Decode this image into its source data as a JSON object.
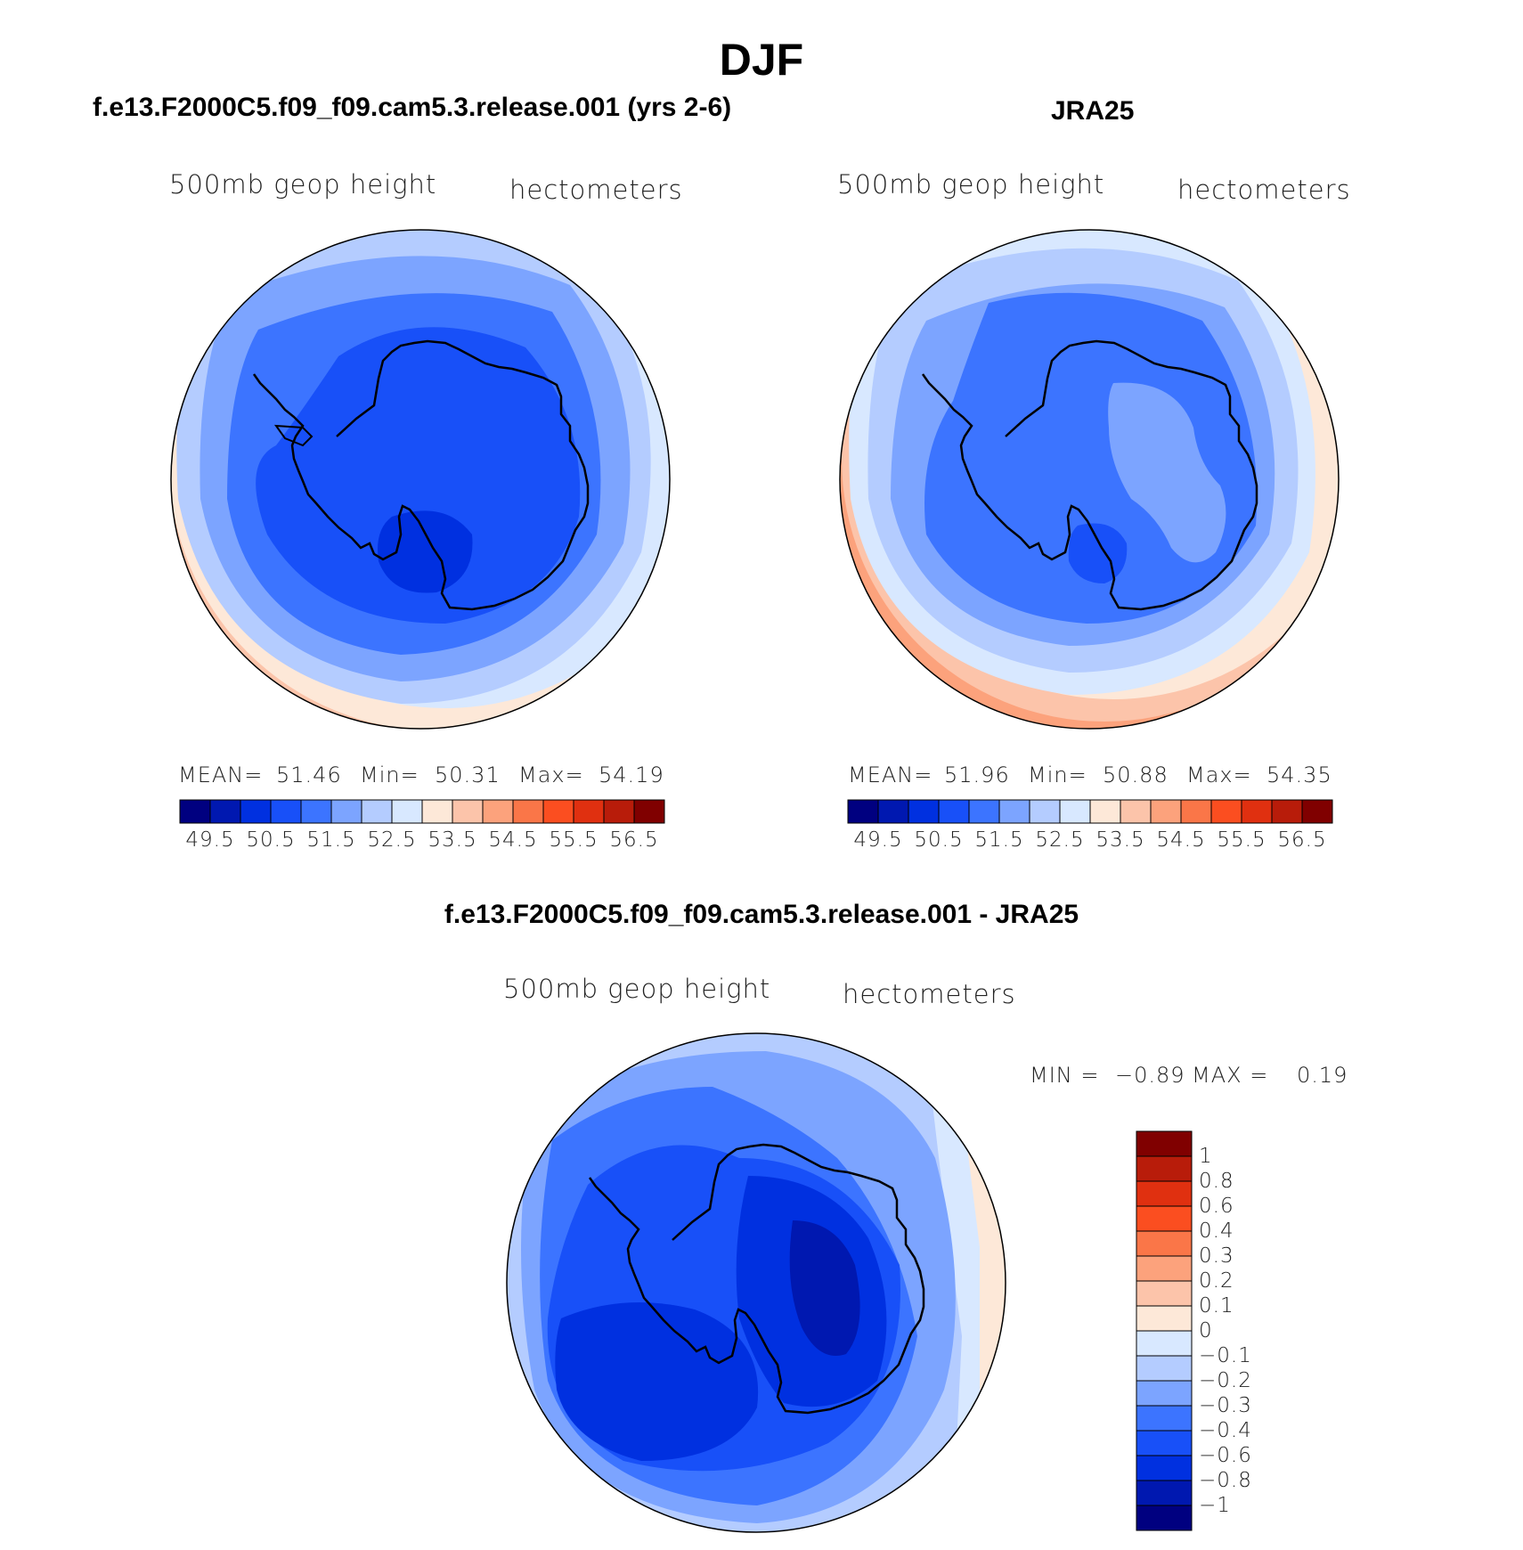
{
  "title": "DJF",
  "panels": [
    {
      "title": "f.e13.F2000C5.f09_f09.cam5.3.release.001 (yrs 2-6)",
      "variable": "500mb geop height",
      "units": "hectometers",
      "stats": {
        "mean_label": "MEAN=",
        "mean": "51.46",
        "min_label": "Min=",
        "min": "50.31",
        "max_label": "Max=",
        "max": "54.19"
      }
    },
    {
      "title": "JRA25",
      "variable": "500mb geop height",
      "units": "hectometers",
      "stats": {
        "mean_label": "MEAN=",
        "mean": "51.96",
        "min_label": "Min=",
        "min": "50.88",
        "max_label": "Max=",
        "max": "54.35"
      }
    },
    {
      "title": "f.e13.F2000C5.f09_f09.cam5.3.release.001 - JRA25",
      "variable": "500mb geop height",
      "units": "hectometers",
      "stats": {
        "min_label": "MIN =",
        "min": "−0.89",
        "max_label": "MAX =",
        "max": "0.19"
      }
    }
  ],
  "colorbar_abs": {
    "colors": [
      "#000080",
      "#0018b0",
      "#0030e0",
      "#1850f8",
      "#3c74ff",
      "#7ca4ff",
      "#b4ccff",
      "#d8e8ff",
      "#fde8d8",
      "#fcc4aa",
      "#fca27c",
      "#fa7648",
      "#fb4e20",
      "#e03010",
      "#b81c0a",
      "#800000"
    ],
    "labels": [
      "49.5",
      "50.5",
      "51.5",
      "52.5",
      "53.5",
      "54.5",
      "55.5",
      "56.5"
    ]
  },
  "colorbar_diff": {
    "colors": [
      "#000080",
      "#0018b0",
      "#0030e0",
      "#1850f8",
      "#3c74ff",
      "#7ca4ff",
      "#b4ccff",
      "#d8e8ff",
      "#fde8d8",
      "#fcc4aa",
      "#fca27c",
      "#fa7648",
      "#fb4e20",
      "#e03010",
      "#b81c0a",
      "#800000"
    ],
    "labels": [
      "−1",
      "−0.8",
      "−0.6",
      "−0.4",
      "−0.3",
      "−0.2",
      "−0.1",
      "0",
      "0.1",
      "0.2",
      "0.3",
      "0.4",
      "0.6",
      "0.8",
      "1"
    ]
  }
}
